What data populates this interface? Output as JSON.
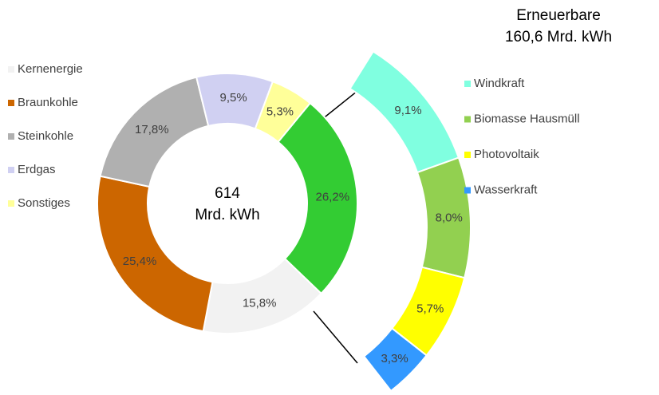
{
  "chart_data": [
    {
      "type": "donut",
      "center_text": [
        "614",
        "Mrd. kWh"
      ],
      "categories": [
        null,
        "Kernenergie",
        "Braunkohle",
        "Steinkohle",
        "Erdgas",
        "Sonstiges"
      ],
      "values": [
        26.2,
        15.8,
        25.4,
        17.8,
        9.5,
        5.3
      ],
      "value_labels": [
        "26,2%",
        "15,8%",
        "25,4%",
        "17,8%",
        "9,5%",
        "5,3%"
      ],
      "colors": [
        "#33cc33",
        "#f2f2f2",
        "#cc6600",
        "#b0b0b0",
        "#d0d0f2",
        "#ffff99"
      ],
      "legend": "left"
    },
    {
      "type": "arc",
      "title": [
        "Erneuerbare",
        "160,6 Mrd. kWh"
      ],
      "categories": [
        "Windkraft",
        "Biomasse Hausmüll",
        "Photovoltaik",
        "Wasserkraft"
      ],
      "values": [
        9.1,
        8.0,
        5.7,
        3.3
      ],
      "value_labels": [
        "9,1%",
        "8,0%",
        "5,7%",
        "3,3%"
      ],
      "colors": [
        "#80ffe0",
        "#92d050",
        "#ffff00",
        "#3399ff"
      ],
      "legend": "right"
    }
  ]
}
